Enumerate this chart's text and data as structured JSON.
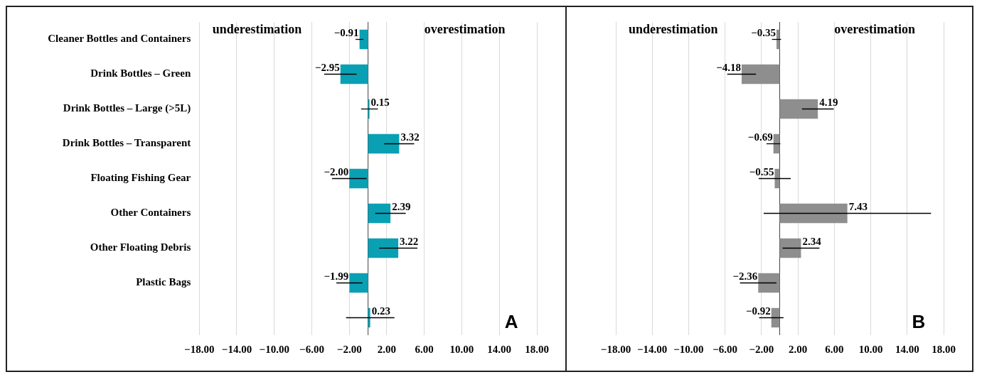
{
  "chart_data": [
    {
      "type": "bar",
      "orientation": "horizontal",
      "categories": [
        "Cleaner Bottles and Containers",
        "Drink Bottles – Green",
        "Drink Bottles – Large (>5L)",
        "Drink Bottles – Transparent",
        "Floating Fishing Gear",
        "Other Containers",
        "Other Floating Debris",
        "Plastic Bags",
        null
      ],
      "values": [
        -0.91,
        -2.95,
        0.15,
        3.32,
        -2.0,
        2.39,
        3.22,
        -1.99,
        0.23
      ],
      "errors": [
        0.42,
        1.73,
        0.9,
        1.6,
        1.84,
        1.63,
        2.04,
        1.39,
        2.58
      ],
      "value_labels": [
        "−0.91",
        "−2.95",
        "0.15",
        "3.32",
        "−2.00",
        "2.39",
        "3.22",
        "−1.99",
        "0.23"
      ],
      "color": "#0aa0b4",
      "xlim": [
        -18,
        18
      ],
      "xticks": [
        {
          "value": -18,
          "label": "−18.00"
        },
        {
          "value": -14,
          "label": "−14.00"
        },
        {
          "value": -10,
          "label": "−10.00"
        },
        {
          "value": -6,
          "label": "−6.00"
        },
        {
          "value": -2,
          "label": "−2.00"
        },
        {
          "value": 2,
          "label": "2.00"
        },
        {
          "value": 6,
          "label": "6.00"
        },
        {
          "value": 10,
          "label": "10.00"
        },
        {
          "value": 14,
          "label": "14.00"
        },
        {
          "value": 18,
          "label": "18.00"
        }
      ],
      "grid": "x",
      "legend": false,
      "annotations": [
        "underestimation",
        "overestimation",
        "A"
      ]
    },
    {
      "type": "bar",
      "orientation": "horizontal",
      "categories": [
        null,
        null,
        null,
        null,
        null,
        null,
        null,
        null,
        null
      ],
      "values": [
        -0.35,
        -4.18,
        4.19,
        -0.69,
        -0.55,
        7.43,
        2.34,
        -2.36,
        -0.92
      ],
      "errors": [
        0.5,
        1.58,
        1.74,
        0.76,
        1.76,
        9.19,
        2.02,
        2.0,
        1.34
      ],
      "value_labels": [
        "−0.35",
        "−4.18",
        "4.19",
        "−0.69",
        "−0.55",
        "7.43",
        "2.34",
        "−2.36",
        "−0.92"
      ],
      "color": "#8e8e8e",
      "xlim": [
        -18,
        18
      ],
      "xticks": [
        {
          "value": -18,
          "label": "−18.00"
        },
        {
          "value": -14,
          "label": "−14.00"
        },
        {
          "value": -10,
          "label": "−10.00"
        },
        {
          "value": -6,
          "label": "−6.00"
        },
        {
          "value": -2,
          "label": "−2.00"
        },
        {
          "value": 2,
          "label": "2.00"
        },
        {
          "value": 6,
          "label": "6.00"
        },
        {
          "value": 10,
          "label": "10.00"
        },
        {
          "value": 14,
          "label": "14.00"
        },
        {
          "value": 18,
          "label": "18.00"
        }
      ],
      "grid": "x",
      "legend": false,
      "annotations": [
        "underestimation",
        "overestimation",
        "B"
      ]
    }
  ]
}
